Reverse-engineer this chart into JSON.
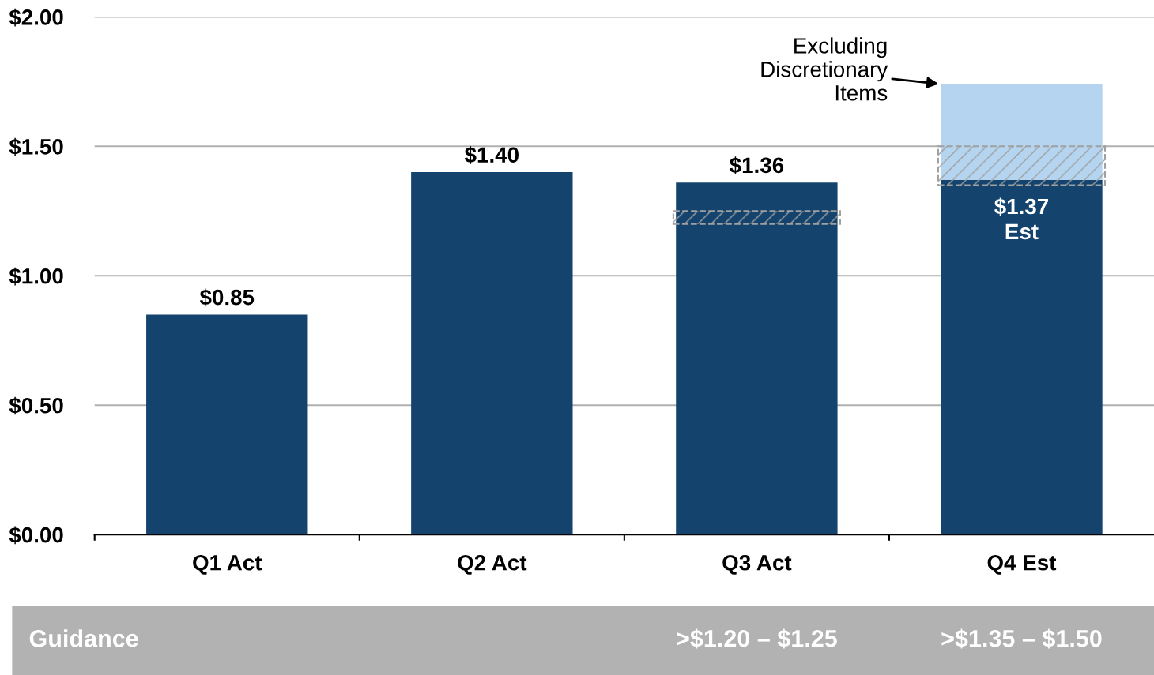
{
  "chart_data": {
    "type": "bar",
    "categories": [
      "Q1 Act",
      "Q2 Act",
      "Q3 Act",
      "Q4 Est"
    ],
    "series": [
      {
        "color": "#14446e",
        "values": [
          0.85,
          1.4,
          1.36,
          1.37
        ],
        "value_labels": [
          "$0.85",
          "$1.40",
          "$1.36",
          "$1.37\nEst"
        ]
      },
      {
        "color": "#b4d4ef",
        "base": [
          null,
          null,
          null,
          1.37
        ],
        "values": [
          null,
          null,
          null,
          0.37
        ]
      },
      {
        "color": "#a0a0a0",
        "line_style": "dashed",
        "base": [
          null,
          null,
          1.2,
          1.35
        ],
        "values": [
          null,
          null,
          0.05,
          0.15
        ]
      }
    ],
    "ylim": [
      0,
      2
    ],
    "yticks": [
      {
        "value": 0,
        "label": "$0.00"
      },
      {
        "value": 0.5,
        "label": "$0.50"
      },
      {
        "value": 1,
        "label": "$1.00"
      },
      {
        "value": 1.5,
        "label": "$1.50"
      },
      {
        "value": 2,
        "label": "$2.00"
      }
    ],
    "grid": "y",
    "legend": false,
    "annotations": [
      "Excluding\nDiscretionary\nItems",
      "Guidance",
      ">$1.20 – $1.25",
      ">$1.35 – $1.50"
    ]
  }
}
